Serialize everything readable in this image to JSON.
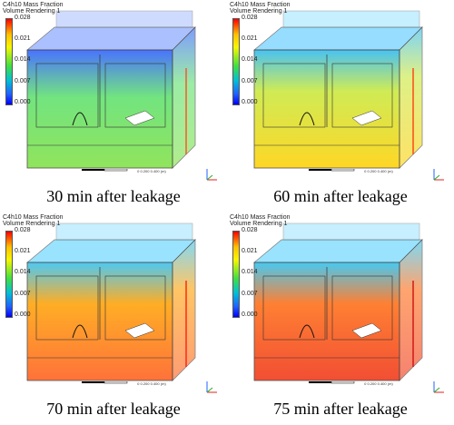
{
  "legend": {
    "title_line1": "C4h10 Mass Fraction",
    "title_line2": "Volume Rendering 1",
    "ticks": [
      "0.028",
      "0.021",
      "0.014",
      "0.007",
      "0.000"
    ]
  },
  "scale_bar": {
    "labels": [
      "0",
      "0.200",
      "0.400 (m)"
    ]
  },
  "panels": [
    {
      "caption": "30 min after leakage",
      "top_color": "#2a5cff",
      "mid_color": "#5ae06a",
      "bottom_color": "#7ee040"
    },
    {
      "caption": "60 min after leakage",
      "top_color": "#2ab8f0",
      "mid_color": "#c8e838",
      "bottom_color": "#ffd000"
    },
    {
      "caption": "70 min after leakage",
      "top_color": "#30c0f0",
      "mid_color": "#ffa000",
      "bottom_color": "#ff5a18"
    },
    {
      "caption": "75 min after leakage",
      "top_color": "#28c0f0",
      "mid_color": "#ff6a10",
      "bottom_color": "#f03010"
    }
  ]
}
